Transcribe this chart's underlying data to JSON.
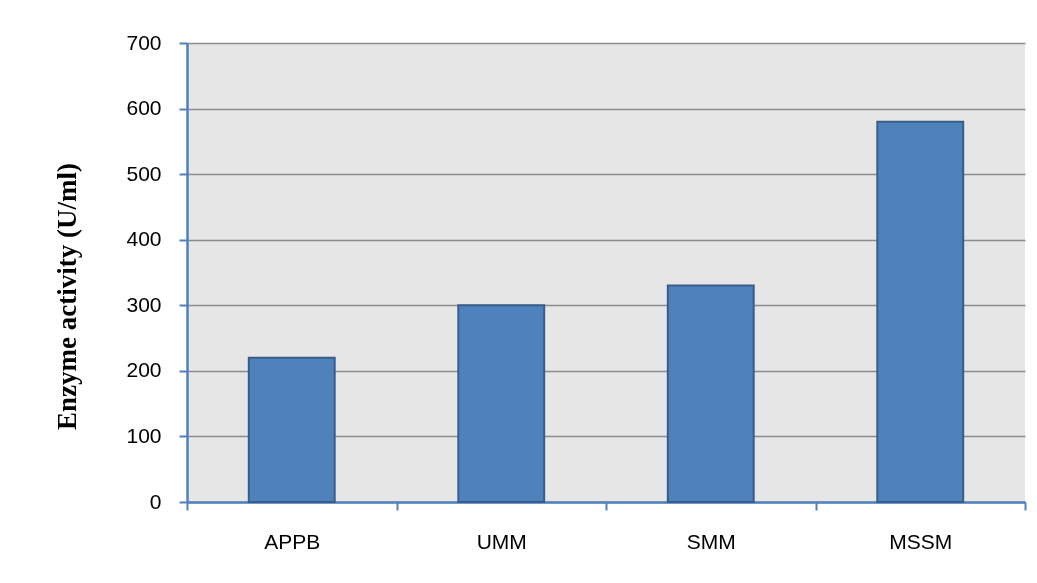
{
  "chart_data": {
    "type": "bar",
    "ylabel": "Enzyme activity (U/ml)",
    "categories": [
      "APPB",
      "UMM",
      "SMM",
      "MSSM"
    ],
    "values": [
      220,
      300,
      330,
      580
    ],
    "color": "#4f81bd",
    "ylim": [
      0,
      700
    ],
    "yticks": [
      0,
      100,
      200,
      300,
      400,
      500,
      600,
      700
    ],
    "grid": "y"
  }
}
